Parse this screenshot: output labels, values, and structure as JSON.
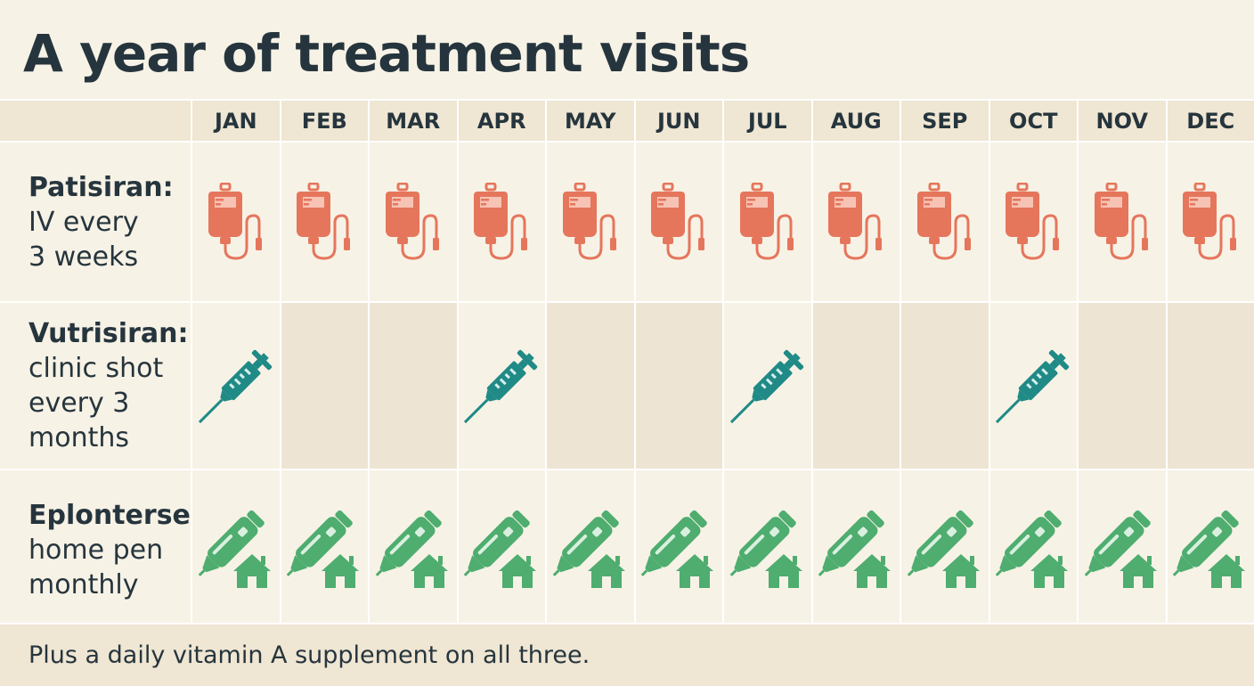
{
  "title": "A year of treatment visits",
  "months": [
    "JAN",
    "FEB",
    "MAR",
    "APR",
    "MAY",
    "JUN",
    "JUL",
    "AUG",
    "SEP",
    "OCT",
    "NOV",
    "DEC"
  ],
  "colors": {
    "iv": "#e5765c",
    "shot": "#1f8a86",
    "pen": "#4ead6f"
  },
  "rows": [
    {
      "drug": "Patisiran:",
      "desc": "IV every\n3 weeks",
      "icon": "iv-bag-icon",
      "shaded": false,
      "visits": [
        true,
        true,
        true,
        true,
        true,
        true,
        true,
        true,
        true,
        true,
        true,
        true
      ]
    },
    {
      "drug": "Vutrisiran:",
      "desc": "clinic shot\nevery 3\nmonths",
      "icon": "syringe-icon",
      "shaded": true,
      "visits": [
        true,
        false,
        false,
        true,
        false,
        false,
        true,
        false,
        false,
        true,
        false,
        false
      ]
    },
    {
      "drug": "Eplontersen:",
      "desc": "home pen\nmonthly",
      "icon": "home-pen-icon",
      "shaded": false,
      "visits": [
        true,
        true,
        true,
        true,
        true,
        true,
        true,
        true,
        true,
        true,
        true,
        true
      ]
    }
  ],
  "footer": "Plus a daily vitamin A supplement on all three."
}
